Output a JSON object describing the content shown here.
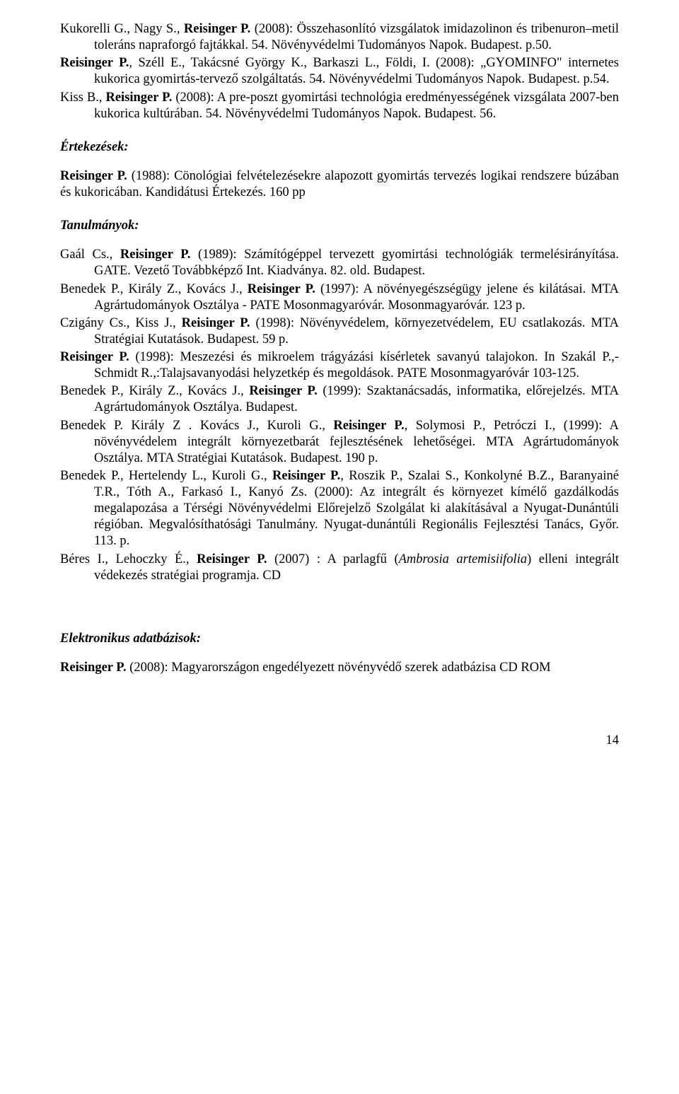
{
  "refs": {
    "r1_prefix": "Kukorelli G., Nagy S., ",
    "r1_bold": "Reisinger P.",
    "r1_rest": " (2008): Összehasonlító vizsgálatok imidazolinon és tribenuron–metil toleráns napraforgó fajtákkal. 54. Növényvédelmi Tudományos Napok. Budapest. p.50.",
    "r2_bold": "Reisinger P.",
    "r2_rest": ", Széll E., Takácsné György K., Barkaszi L., Földi, I. (2008): „GYOMINFO\" internetes kukorica gyomirtás-tervező szolgáltatás. 54. Növényvédelmi Tudományos Napok. Budapest. p.54.",
    "r3_prefix": "Kiss B., ",
    "r3_bold": "Reisinger P.",
    "r3_rest": " (2008): A pre-poszt gyomirtási technológia eredményességének vizsgálata 2007-ben kukorica kultúrában. 54. Növényvédelmi Tudományos Napok. Budapest. 56."
  },
  "sections": {
    "ertekezesek": "Értekezések:",
    "tanulmanyok": "Tanulmányok:",
    "elektronikus": "Elektronikus adatbázisok:"
  },
  "ertekezesek": {
    "e1_bold": "Reisinger P.",
    "e1_rest": " (1988): Cönológiai felvételezésekre alapozott gyomirtás tervezés logikai rendszere búzában és kukoricában. Kandidátusi Értekezés. 160 pp"
  },
  "tanulmanyok": {
    "t1_prefix": "Gaál Cs., ",
    "t1_bold": "Reisinger P.",
    "t1_rest": " (1989): Számítógéppel tervezett gyomirtási technológiák termelésirányítása. GATE. Vezető Továbbképző Int. Kiadványa. 82. old. Budapest.",
    "t2_prefix": "Benedek P., Király Z., Kovács J., ",
    "t2_bold": "Reisinger P.",
    "t2_rest": " (1997): A növényegészségügy jelene és kilátásai. MTA Agrártudományok Osztálya - PATE Mosonmagyaróvár. Mosonmagyaróvár. 123 p.",
    "t3_prefix": "Czigány Cs., Kiss J., ",
    "t3_bold": "Reisinger P.",
    "t3_rest": " (1998): Növényvédelem, környezetvédelem, EU csatlakozás. MTA Stratégiai Kutatások. Budapest. 59 p.",
    "t4_bold": "Reisinger P.",
    "t4_rest": " (1998): Meszezési és mikroelem trágyázási kísérletek savanyú talajokon. In Szakál P.,- Schmidt R.,:Talajsavanyodási helyzetkép és megoldások. PATE Mosonmagyaróvár 103-125.",
    "t5_prefix": "Benedek P., Király Z., Kovács J., ",
    "t5_bold": "Reisinger P.",
    "t5_rest": " (1999): Szaktanácsadás, informatika, előrejelzés. MTA Agrártudományok Osztálya. Budapest.",
    "t6_prefix": "Benedek P. Király Z . Kovács J., Kuroli G., ",
    "t6_bold": "Reisinger P.",
    "t6_rest": ", Solymosi P., Petróczi I., (1999): A növényvédelem integrált környezetbarát fejlesztésének lehetőségei. MTA Agrártudományok Osztálya. MTA Stratégiai Kutatások. Budapest. 190 p.",
    "t7_prefix": "Benedek P., Hertelendy L., Kuroli G., ",
    "t7_bold": "Reisinger P.",
    "t7_rest": ", Roszik P., Szalai S., Konkolyné B.Z., Baranyainé T.R., Tóth A., Farkasó I., Kanyó Zs. (2000): Az integrált és környezet kímélő gazdálkodás megalapozása a Térségi Növényvédelmi Előrejelző Szolgálat ki alakításával a Nyugat-Dunántúli régióban. Megvalósíthatósági Tanulmány. Nyugat-dunántúli Regionális Fejlesztési Tanács, Győr. 113. p.",
    "t8_prefix": "Béres I., Lehoczky É., ",
    "t8_bold": "Reisinger P.",
    "t8_mid": " (2007) : A parlagfű (",
    "t8_italic": "Ambrosia artemisiifolia",
    "t8_end": ") elleni integrált védekezés stratégiai programja. CD"
  },
  "elektronikus": {
    "el1_bold": "Reisinger P.",
    "el1_rest": " (2008): Magyarországon engedélyezett növényvédő szerek adatbázisa CD ROM"
  },
  "pageNumber": "14"
}
